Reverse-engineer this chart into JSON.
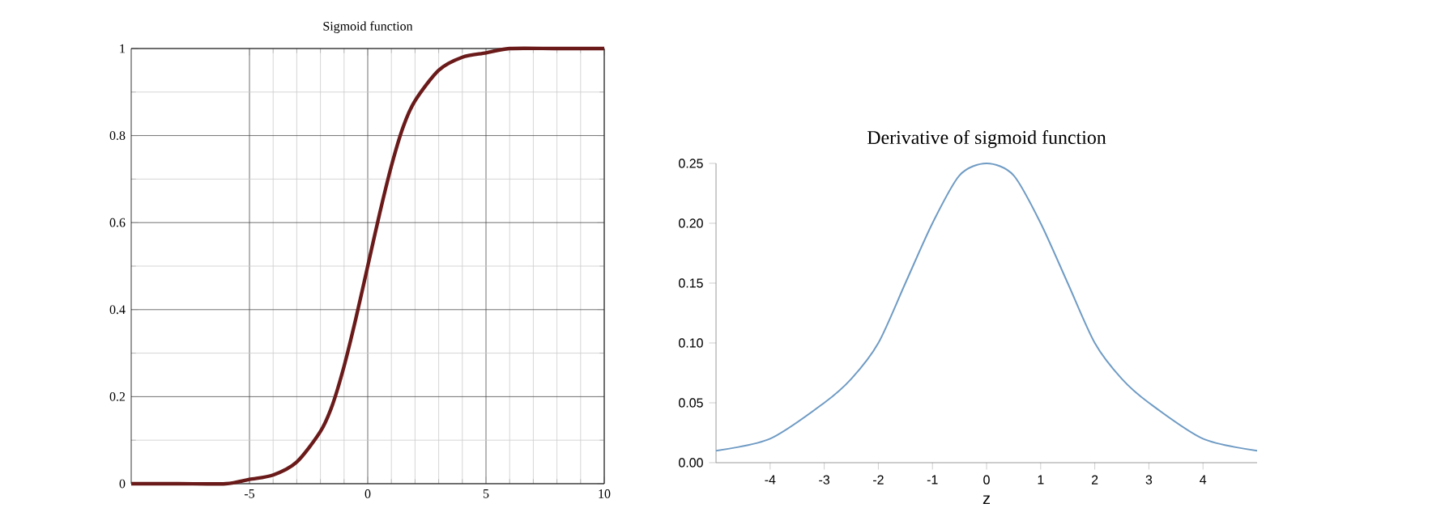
{
  "chart_data": [
    {
      "type": "line",
      "title": "Sigmoid function",
      "x": [
        -10,
        -8,
        -6,
        -5,
        -4,
        -3,
        -2,
        -1.5,
        -1,
        -0.5,
        0,
        0.5,
        1,
        1.5,
        2,
        3,
        4,
        5,
        6,
        8,
        10
      ],
      "series": [
        {
          "color": "#6b1a1a",
          "values": [
            0,
            0,
            0,
            0.01,
            0.02,
            0.05,
            0.12,
            0.18,
            0.27,
            0.38,
            0.5,
            0.62,
            0.73,
            0.82,
            0.88,
            0.95,
            0.98,
            0.99,
            1,
            1,
            1
          ]
        }
      ],
      "xlim": [
        -10,
        10
      ],
      "ylim": [
        0,
        1
      ],
      "xticks": [
        -5,
        0,
        5,
        10
      ],
      "yticks": [
        0,
        0.2,
        0.4,
        0.6,
        0.8,
        1
      ],
      "grid": true
    },
    {
      "type": "line",
      "title": "Derivative of sigmoid function",
      "xlabel": "z",
      "x": [
        -5,
        -4,
        -3,
        -2.5,
        -2,
        -1.5,
        -1,
        -0.5,
        0,
        0.5,
        1,
        1.5,
        2,
        2.5,
        3,
        4,
        5
      ],
      "series": [
        {
          "color": "#6f9bc4",
          "values": [
            0.01,
            0.02,
            0.05,
            0.07,
            0.1,
            0.15,
            0.2,
            0.24,
            0.25,
            0.24,
            0.2,
            0.15,
            0.1,
            0.07,
            0.05,
            0.02,
            0.01
          ]
        }
      ],
      "xlim": [
        -5,
        5
      ],
      "ylim": [
        0,
        0.25
      ],
      "xticks": [
        -4,
        -3,
        -2,
        -1,
        0,
        1,
        2,
        3,
        4
      ],
      "yticks": [
        {
          "value": 0,
          "label": "0.00"
        },
        {
          "value": 0.05,
          "label": "0.05"
        },
        {
          "value": 0.1,
          "label": "0.10"
        },
        {
          "value": 0.15,
          "label": "0.15"
        },
        {
          "value": 0.2,
          "label": "0.20"
        },
        {
          "value": 0.25,
          "label": "0.25"
        }
      ]
    }
  ]
}
